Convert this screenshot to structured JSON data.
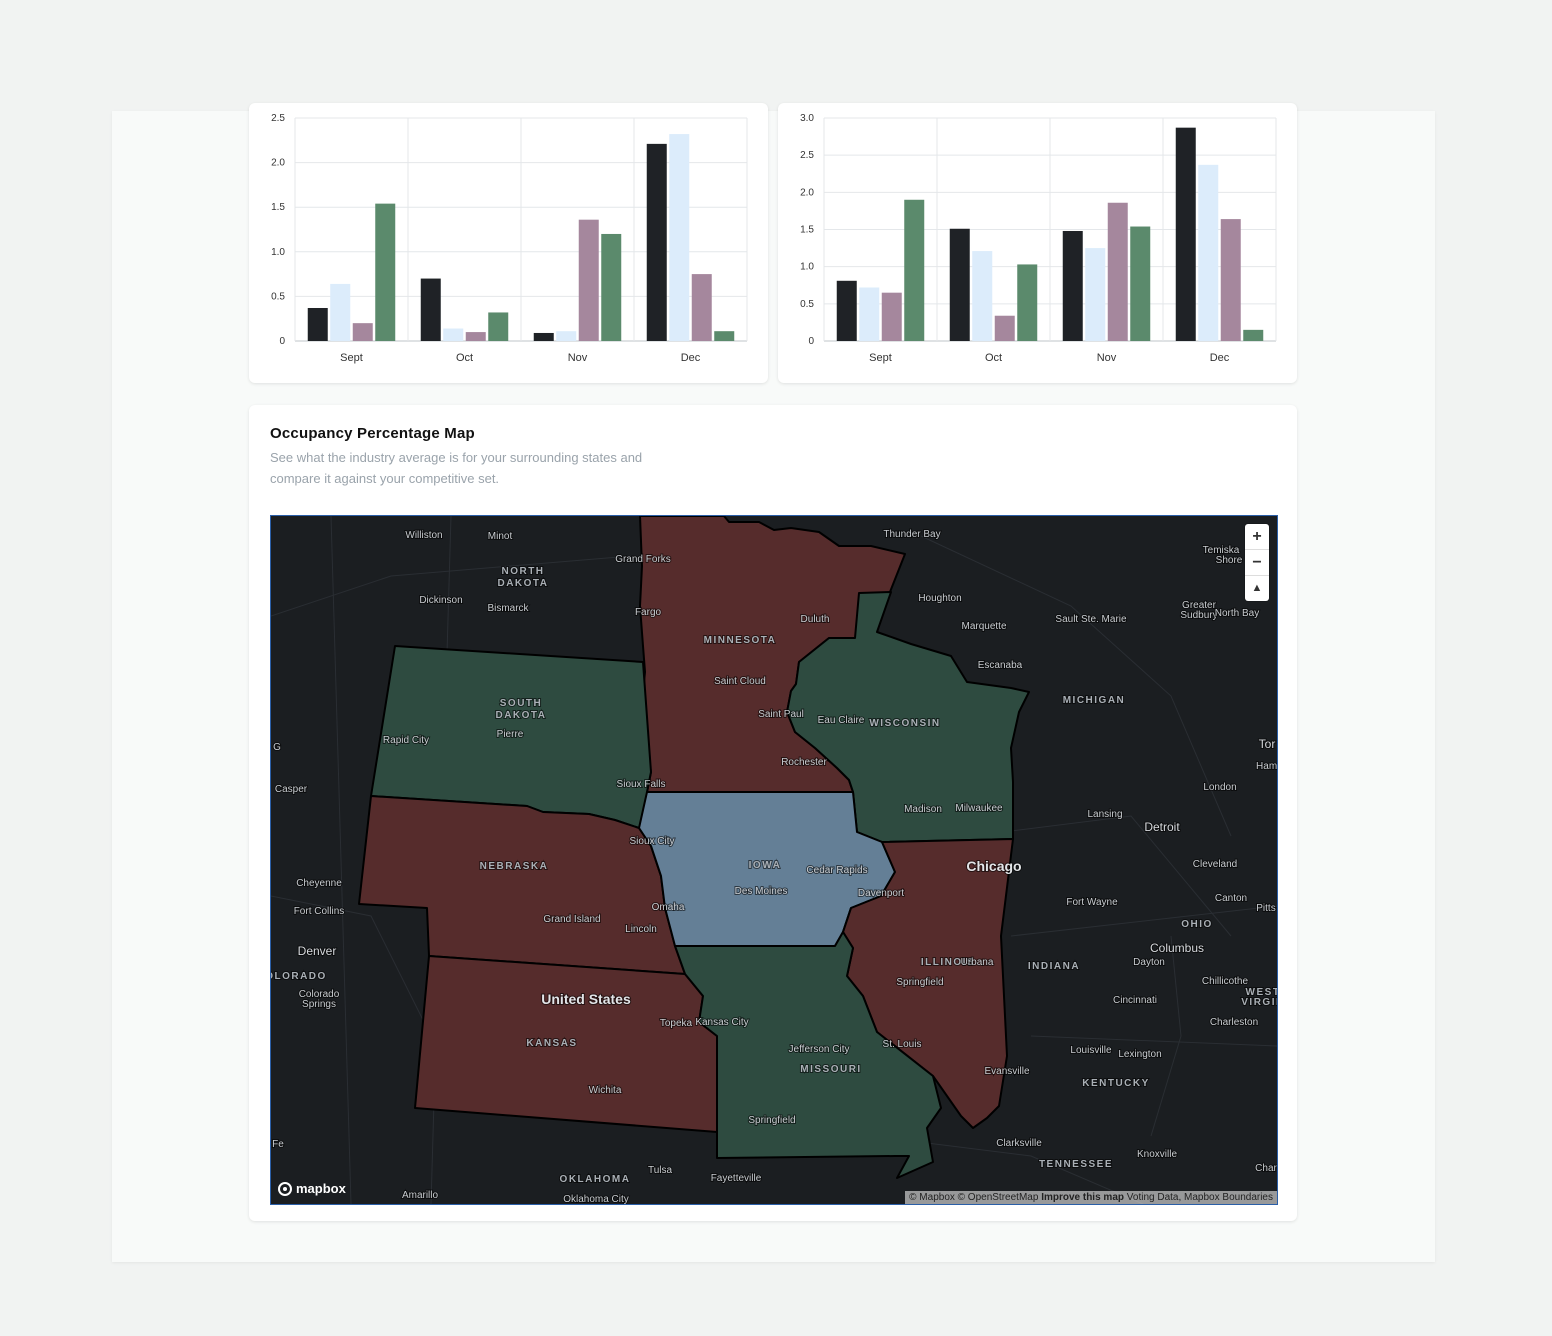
{
  "chart_data": [
    {
      "type": "bar",
      "categories": [
        "Sept",
        "Oct",
        "Nov",
        "Dec"
      ],
      "yticks": [
        "0",
        "0.5",
        "1.0",
        "1.5",
        "2.0",
        "2.5"
      ],
      "ylim": [
        0,
        2.5
      ],
      "series": [
        {
          "color": "#1f2226",
          "values": [
            0.37,
            0.7,
            0.09,
            2.21
          ]
        },
        {
          "color": "#dcecfb",
          "values": [
            0.64,
            0.14,
            0.11,
            2.32
          ]
        },
        {
          "color": "#a5879d",
          "values": [
            0.2,
            0.1,
            1.36,
            0.75
          ]
        },
        {
          "color": "#5b8a6c",
          "values": [
            1.54,
            0.32,
            1.2,
            0.11
          ]
        }
      ]
    },
    {
      "type": "bar",
      "categories": [
        "Sept",
        "Oct",
        "Nov",
        "Dec"
      ],
      "yticks": [
        "0",
        "0.5",
        "1.0",
        "1.5",
        "2.0",
        "2.5",
        "3.0"
      ],
      "ylim": [
        0,
        3.0
      ],
      "series": [
        {
          "color": "#1f2226",
          "values": [
            0.81,
            1.51,
            1.48,
            2.87
          ]
        },
        {
          "color": "#dcecfb",
          "values": [
            0.72,
            1.21,
            1.25,
            2.37
          ]
        },
        {
          "color": "#a5879d",
          "values": [
            0.65,
            0.34,
            1.86,
            1.64
          ]
        },
        {
          "color": "#5b8a6c",
          "values": [
            1.9,
            1.03,
            1.54,
            0.15
          ]
        }
      ]
    }
  ],
  "map_section": {
    "title": "Occupancy Percentage Map",
    "description": "See what the industry average is for your surrounding states and compare it against your competitive set."
  },
  "map": {
    "colors": {
      "above": "#562c2c",
      "below": "#2e4b40",
      "focus": "#647f96",
      "outline": "#000000"
    },
    "controls": {
      "zoom_in": "+",
      "zoom_out": "−",
      "compass": "▲"
    },
    "logo": "mapbox",
    "attribution": {
      "copyright": "© Mapbox © OpenStreetMap",
      "improve": "Improve this map",
      "extra": "Voting Data, Mapbox Boundaries"
    },
    "labels": [
      {
        "text": "Williston",
        "cls": "c"
      },
      {
        "text": "Minot",
        "cls": "c"
      },
      {
        "text": "Grand Forks",
        "cls": "c"
      },
      {
        "text": "NORTH",
        "cls": "s"
      },
      {
        "text": "DAKOTA",
        "cls": "s"
      },
      {
        "text": "Thunder Bay",
        "cls": "c"
      },
      {
        "text": "Dickinson",
        "cls": "c"
      },
      {
        "text": "Bismarck",
        "cls": "c"
      },
      {
        "text": "Fargo",
        "cls": "c"
      },
      {
        "text": "Duluth",
        "cls": "c"
      },
      {
        "text": "Houghton",
        "cls": "c"
      },
      {
        "text": "Marquette",
        "cls": "c"
      },
      {
        "text": "Sault Ste. Marie",
        "cls": "c"
      },
      {
        "text": "Greater",
        "cls": "c"
      },
      {
        "text": "Sudbury",
        "cls": "c"
      },
      {
        "text": "North Bay",
        "cls": "c"
      },
      {
        "text": "Temiska",
        "cls": "c"
      },
      {
        "text": "Shore",
        "cls": "c"
      },
      {
        "text": "MINNESOTA",
        "cls": "s"
      },
      {
        "text": "Escanaba",
        "cls": "c"
      },
      {
        "text": "Saint Cloud",
        "cls": "c"
      },
      {
        "text": "SOUTH",
        "cls": "s"
      },
      {
        "text": "DAKOTA",
        "cls": "s"
      },
      {
        "text": "MICHIGAN",
        "cls": "s"
      },
      {
        "text": "Saint Paul",
        "cls": "c"
      },
      {
        "text": "Eau Claire",
        "cls": "c"
      },
      {
        "text": "WISCONSIN",
        "cls": "s"
      },
      {
        "text": "Rapid City",
        "cls": "c"
      },
      {
        "text": "Pierre",
        "cls": "c"
      },
      {
        "text": "Tor",
        "cls": "b"
      },
      {
        "text": "Hamilto",
        "cls": "c"
      },
      {
        "text": "Rochester",
        "cls": "c"
      },
      {
        "text": "Casper",
        "cls": "c"
      },
      {
        "text": "Sioux Falls",
        "cls": "c"
      },
      {
        "text": "London",
        "cls": "c"
      },
      {
        "text": "Madison",
        "cls": "c"
      },
      {
        "text": "Milwaukee",
        "cls": "c"
      },
      {
        "text": "Lansing",
        "cls": "c"
      },
      {
        "text": "Detroit",
        "cls": "b"
      },
      {
        "text": "Sioux City",
        "cls": "c"
      },
      {
        "text": "NEBRASKA",
        "cls": "s"
      },
      {
        "text": "IOWA",
        "cls": "s"
      },
      {
        "text": "Cedar Rapids",
        "cls": "c"
      },
      {
        "text": "Chicago",
        "cls": "m"
      },
      {
        "text": "Cleveland",
        "cls": "c"
      },
      {
        "text": "Cheyenne",
        "cls": "c"
      },
      {
        "text": "Des Moines",
        "cls": "c"
      },
      {
        "text": "Davenport",
        "cls": "c"
      },
      {
        "text": "Fort Collins",
        "cls": "c"
      },
      {
        "text": "Omaha",
        "cls": "c"
      },
      {
        "text": "Fort Wayne",
        "cls": "c"
      },
      {
        "text": "Canton",
        "cls": "c"
      },
      {
        "text": "Pitts",
        "cls": "c"
      },
      {
        "text": "Grand Island",
        "cls": "c"
      },
      {
        "text": "OHIO",
        "cls": "s"
      },
      {
        "text": "Lincoln",
        "cls": "c"
      },
      {
        "text": "Denver",
        "cls": "b"
      },
      {
        "text": "Columbus",
        "cls": "b"
      },
      {
        "text": "OLORADO",
        "cls": "s"
      },
      {
        "text": "ILLINOIS",
        "cls": "s"
      },
      {
        "text": "Urbana",
        "cls": "c"
      },
      {
        "text": "INDIANA",
        "cls": "s"
      },
      {
        "text": "Dayton",
        "cls": "c"
      },
      {
        "text": "Colorado",
        "cls": "c"
      },
      {
        "text": "Springs",
        "cls": "c"
      },
      {
        "text": "Springfield",
        "cls": "c"
      },
      {
        "text": "Chillicothe",
        "cls": "c"
      },
      {
        "text": "WEST",
        "cls": "s"
      },
      {
        "text": "VIRGIN",
        "cls": "s"
      },
      {
        "text": "United States",
        "cls": "m"
      },
      {
        "text": "Cincinnati",
        "cls": "c"
      },
      {
        "text": "Topeka",
        "cls": "c"
      },
      {
        "text": "Kansas City",
        "cls": "c"
      },
      {
        "text": "Charleston",
        "cls": "c"
      },
      {
        "text": "KANSAS",
        "cls": "s"
      },
      {
        "text": "Jefferson City",
        "cls": "c"
      },
      {
        "text": "St. Louis",
        "cls": "c"
      },
      {
        "text": "Louisville",
        "cls": "c"
      },
      {
        "text": "Lexington",
        "cls": "c"
      },
      {
        "text": "MISSOURI",
        "cls": "s"
      },
      {
        "text": "Evansville",
        "cls": "c"
      },
      {
        "text": "KENTUCKY",
        "cls": "s"
      },
      {
        "text": "Wichita",
        "cls": "c"
      },
      {
        "text": "Springfield",
        "cls": "c"
      },
      {
        "text": "Fe",
        "cls": "c"
      },
      {
        "text": "Clarksville",
        "cls": "c"
      },
      {
        "text": "Knoxville",
        "cls": "c"
      },
      {
        "text": "TENNESSEE",
        "cls": "s"
      },
      {
        "text": "Char",
        "cls": "c"
      },
      {
        "text": "Tulsa",
        "cls": "c"
      },
      {
        "text": "Fayetteville",
        "cls": "c"
      },
      {
        "text": "OKLAHOMA",
        "cls": "s"
      },
      {
        "text": "Amarillo",
        "cls": "c"
      },
      {
        "text": "Oklahoma City",
        "cls": "c"
      },
      {
        "text": "G",
        "cls": "c"
      }
    ]
  }
}
